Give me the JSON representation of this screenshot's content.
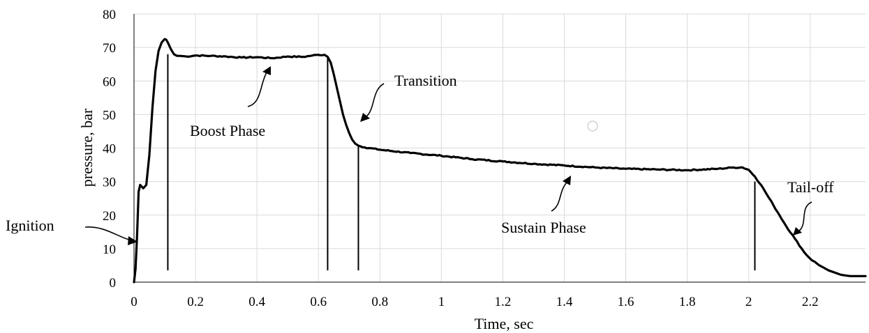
{
  "chart_data": {
    "type": "line",
    "title": "",
    "xlabel": "Time, sec",
    "ylabel": "pressure, bar",
    "xlim": [
      0,
      2.38
    ],
    "ylim": [
      0,
      80
    ],
    "xticks": [
      0,
      0.2,
      0.4,
      0.6,
      0.8,
      1,
      1.2,
      1.4,
      1.6,
      1.8,
      2,
      2.2
    ],
    "xtick_labels": [
      "0",
      "0.2",
      "0.4",
      "0.6",
      "0.8",
      "1",
      "1.2",
      "1.4",
      "1.6",
      "1.8",
      "2",
      "2.2"
    ],
    "yticks": [
      0,
      10,
      20,
      30,
      40,
      50,
      60,
      70,
      80
    ],
    "ytick_labels": [
      "0",
      "10",
      "20",
      "30",
      "40",
      "50",
      "60",
      "70",
      "80"
    ],
    "grid": true,
    "series": [
      {
        "name": "pressure",
        "x": [
          0,
          0.005,
          0.01,
          0.015,
          0.02,
          0.025,
          0.03,
          0.04,
          0.05,
          0.06,
          0.07,
          0.08,
          0.09,
          0.1,
          0.105,
          0.11,
          0.12,
          0.13,
          0.14,
          0.15,
          0.17,
          0.2,
          0.25,
          0.3,
          0.35,
          0.4,
          0.45,
          0.5,
          0.55,
          0.58,
          0.6,
          0.62,
          0.63,
          0.64,
          0.65,
          0.66,
          0.67,
          0.68,
          0.69,
          0.7,
          0.71,
          0.72,
          0.73,
          0.75,
          0.8,
          0.9,
          1.0,
          1.1,
          1.2,
          1.3,
          1.4,
          1.5,
          1.6,
          1.7,
          1.8,
          1.9,
          1.95,
          1.98,
          2.0,
          2.02,
          2.04,
          2.06,
          2.08,
          2.1,
          2.12,
          2.15,
          2.18,
          2.2,
          2.23,
          2.26,
          2.3,
          2.33,
          2.36,
          2.38
        ],
        "y": [
          0,
          4,
          14,
          27,
          29,
          28.5,
          28,
          29,
          38,
          52,
          63,
          69,
          71.5,
          72.5,
          72.3,
          71.5,
          69.5,
          68,
          67.5,
          67.5,
          67.3,
          67.6,
          67.5,
          67.3,
          67,
          67.1,
          66.8,
          67.3,
          67.2,
          67.6,
          67.8,
          67.8,
          67.2,
          65.5,
          62,
          58,
          54,
          50,
          47,
          44.5,
          42.5,
          41.3,
          40.7,
          40.2,
          39.5,
          38.5,
          37.7,
          36.7,
          36,
          35.3,
          34.8,
          34.2,
          33.8,
          33.6,
          33.4,
          33.8,
          34.2,
          34.2,
          33.5,
          31.5,
          29,
          26,
          23,
          20,
          17,
          13,
          9,
          7,
          5,
          3.5,
          2.2,
          1.8,
          1.8,
          1.8
        ]
      }
    ],
    "phase_markers": [
      0.11,
      0.63,
      0.73,
      2.02
    ],
    "annotations": [
      "Ignition",
      "Boost Phase",
      "Transition",
      "Sustain Phase",
      "Tail-off"
    ]
  }
}
